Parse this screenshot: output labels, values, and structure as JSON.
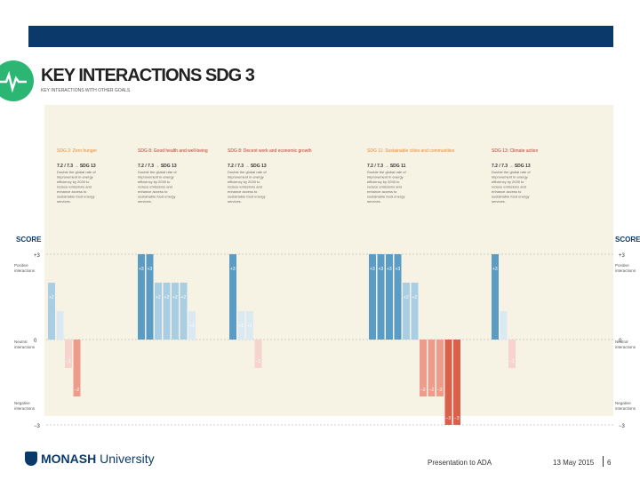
{
  "title": "KEY INTERACTIONS SDG 3",
  "subtitle": "KEY INTERACTIONS WITH OTHER GOALS",
  "footer": {
    "brand_bold": "MONASH",
    "brand_rest": " University",
    "presentation": "Presentation to ADA",
    "date": "13 May 2015",
    "page": "6"
  },
  "colors": {
    "header": "#0b3a6a",
    "logo": "#2bb673",
    "panel": "#f7f3e4",
    "goal_orange": "#e8892c",
    "goal_red": "#c0392b",
    "positive3": "#5b9cc4",
    "positive2": "#a9cde3",
    "positive1": "#dbe9f3",
    "negative1": "#f6d3cc",
    "negative2": "#ed9c8c",
    "negative3": "#d9604a"
  },
  "chart_data": {
    "type": "bar",
    "ylabel_left": "SCORE",
    "ylabel_right": "SCORE",
    "ylim": [
      -3,
      3
    ],
    "y_ticks": [
      "+3",
      "0",
      "−3"
    ],
    "zone_labels": {
      "positive": "Positive interactions",
      "neutral": "Neutral interactions",
      "negative": "Negative interactions"
    },
    "goals": [
      {
        "label": "SDG 2: Zero hunger",
        "target": "7.2 / 7.3 → SDG 13",
        "color": "orange",
        "description": "Double the global rate of improvement in energy efficiency by 2030 to reduce emissions and enhance access to sustainable food energy services."
      },
      {
        "label": "SDG 8: Good health and well-being",
        "target": "7.2 / 7.3 → SDG 13",
        "color": "red",
        "description": "Double the global rate of improvement in energy efficiency by 2030 to reduce emissions and enhance access to sustainable food energy services."
      },
      {
        "label": "SDG 8: Decent work and economic growth",
        "target": "7.2 / 7.3 → SDG 13",
        "color": "red",
        "description": "Double the global rate of improvement in energy efficiency by 2030 to reduce emissions and enhance access to sustainable food energy services."
      },
      {
        "label": "SDG 11: Sustainable cities and communities",
        "target": "7.2 / 7.3 → SDG 11",
        "color": "orange",
        "description": "Double the global rate of improvement in energy efficiency by 2030 to reduce emissions and enhance access to sustainable food energy services."
      },
      {
        "label": "SDG 13: Climate action",
        "target": "7.2 / 7.3 → SDG 13",
        "color": "red",
        "description": "Double the global rate of improvement in energy efficiency by 2030 to reduce emissions and enhance access to sustainable food energy services."
      }
    ],
    "bars": [
      {
        "goal": 0,
        "value": 2,
        "label": "+2"
      },
      {
        "goal": 0,
        "value": 1,
        "label": ""
      },
      {
        "goal": 0,
        "value": -1,
        "label": "−1"
      },
      {
        "goal": 0,
        "value": -2,
        "label": "−2"
      },
      {
        "goal": 1,
        "value": 3,
        "label": "+3"
      },
      {
        "goal": 1,
        "value": 3,
        "label": "+3"
      },
      {
        "goal": 1,
        "value": 2,
        "label": "+2"
      },
      {
        "goal": 1,
        "value": 2,
        "label": "+2"
      },
      {
        "goal": 1,
        "value": 2,
        "label": "+2"
      },
      {
        "goal": 1,
        "value": 2,
        "label": "+2"
      },
      {
        "goal": 1,
        "value": 1,
        "label": "+1"
      },
      {
        "goal": 2,
        "value": 3,
        "label": "+3"
      },
      {
        "goal": 2,
        "value": 1,
        "label": "+1"
      },
      {
        "goal": 2,
        "value": 1,
        "label": "+1"
      },
      {
        "goal": 2,
        "value": -1,
        "label": "−1"
      },
      {
        "goal": 3,
        "value": 3,
        "label": "+3"
      },
      {
        "goal": 3,
        "value": 3,
        "label": "+3"
      },
      {
        "goal": 3,
        "value": 3,
        "label": "+3"
      },
      {
        "goal": 3,
        "value": 3,
        "label": "+3"
      },
      {
        "goal": 3,
        "value": 2,
        "label": "+2"
      },
      {
        "goal": 3,
        "value": 2,
        "label": "+2"
      },
      {
        "goal": 3,
        "value": -2,
        "label": "−2"
      },
      {
        "goal": 3,
        "value": -2,
        "label": "−2"
      },
      {
        "goal": 3,
        "value": -2,
        "label": "−2"
      },
      {
        "goal": 3,
        "value": -3,
        "label": "−3"
      },
      {
        "goal": 3,
        "value": -3,
        "label": "−3"
      },
      {
        "goal": 4,
        "value": 3,
        "label": "+3"
      },
      {
        "goal": 4,
        "value": 1,
        "label": ""
      },
      {
        "goal": 4,
        "value": -1,
        "label": "−1"
      }
    ]
  }
}
